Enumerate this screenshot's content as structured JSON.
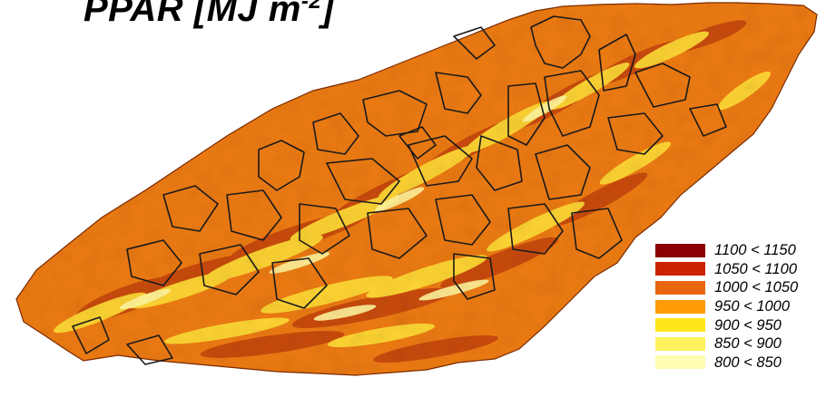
{
  "map": {
    "title": "PPAR [MJ m",
    "title_sup": "-2",
    "title_close": "]",
    "colors": {
      "base": "#ec7a12",
      "dark": "#c2410c",
      "light": "#fdd835",
      "pale": "#fff59d",
      "outline": "#1a1a1a"
    },
    "legend": [
      {
        "label": "1100 < 1150",
        "color": "#8b0000"
      },
      {
        "label": "1050 < 1100",
        "color": "#cc2200"
      },
      {
        "label": "1000 < 1050",
        "color": "#e8670e"
      },
      {
        "label": "950 < 1000",
        "color": "#ff9c07"
      },
      {
        "label": "900 < 950",
        "color": "#ffe61a"
      },
      {
        "label": "850 < 900",
        "color": "#fff25c"
      },
      {
        "label": "800 < 850",
        "color": "#fffcb3"
      }
    ]
  }
}
